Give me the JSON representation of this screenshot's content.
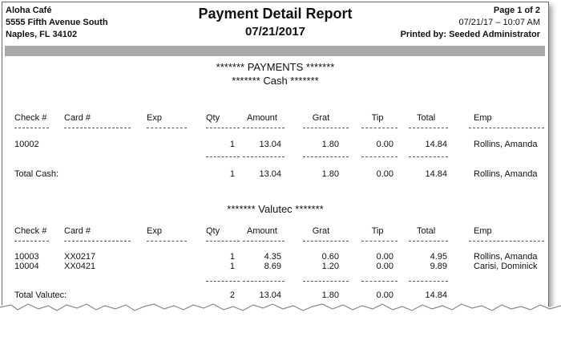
{
  "header": {
    "restaurant": "Aloha Café",
    "address1": "5555 Fifth Avenue South",
    "address2": "Naples, FL 34102",
    "title": "Payment Detail Report",
    "date": "07/21/2017",
    "page": "Page 1 of 2",
    "printed_time": "07/21/17 – 10:07 AM",
    "printed_by": "Printed by: Seeded Administrator"
  },
  "payments_heading": "******* PAYMENTS *******",
  "columns": [
    "Check #",
    "Card #",
    "Exp",
    "Qty",
    "Amount",
    "Grat",
    "Tip",
    "Total",
    "Emp"
  ],
  "cash": {
    "heading": "******* Cash *******",
    "rows": [
      {
        "check": "10002",
        "card": "",
        "exp": "",
        "qty": "1",
        "amount": "13.04",
        "grat": "1.80",
        "tip": "0.00",
        "total": "14.84",
        "emp": "Rollins, Amanda"
      }
    ],
    "total": {
      "label": "Total Cash:",
      "qty": "1",
      "amount": "13.04",
      "grat": "1.80",
      "tip": "0.00",
      "total": "14.84",
      "emp": "Rollins, Amanda"
    }
  },
  "valutec": {
    "heading": "******* Valutec *******",
    "rows": [
      {
        "check": "10003",
        "card": "XX0217",
        "exp": "",
        "qty": "1",
        "amount": "4.35",
        "grat": "0.60",
        "tip": "0.00",
        "total": "4.95",
        "emp": "Rollins, Amanda"
      },
      {
        "check": "10004",
        "card": "XX0421",
        "exp": "",
        "qty": "1",
        "amount": "8.69",
        "grat": "1.20",
        "tip": "0.00",
        "total": "9.89",
        "emp": "Carisi, Dominick"
      }
    ],
    "total": {
      "label": "Total Valutec:",
      "qty": "2",
      "amount": "13.04",
      "grat": "1.80",
      "tip": "0.00",
      "total": "14.84",
      "emp": ""
    }
  }
}
